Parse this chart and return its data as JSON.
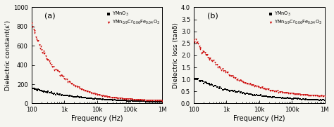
{
  "panel_a": {
    "label": "(a)",
    "xlabel": "Frequency (Hz)",
    "ylabel": "Dielectric constant(ε')",
    "ylim": [
      0,
      1000
    ],
    "yticks": [
      0,
      200,
      400,
      600,
      800,
      1000
    ],
    "xlim": [
      100,
      1000000
    ],
    "color1": "#000000",
    "color2": "#cc0000",
    "marker1": "s",
    "marker2": "v",
    "eps_black_start": 155,
    "eps_black_end": 5,
    "eps_black_exp": 0.28,
    "eps_red_start": 800,
    "eps_red_end": 22,
    "eps_red_exp": 0.52
  },
  "panel_b": {
    "label": "(b)",
    "xlabel": "Frequency (Hz)",
    "ylabel": "Dielectric loss (tanδ)",
    "ylim": [
      0,
      4.0
    ],
    "yticks": [
      0.0,
      0.5,
      1.0,
      1.5,
      2.0,
      2.5,
      3.0,
      3.5,
      4.0
    ],
    "xlim": [
      100,
      1000000
    ],
    "color1": "#000000",
    "color2": "#cc0000",
    "marker1": "s",
    "marker2": "v",
    "loss_black_start": 1.0,
    "loss_black_end": 0.08,
    "loss_black_exp": 0.3,
    "loss_red_start": 2.5,
    "loss_red_end": 0.22,
    "loss_red_exp": 0.37
  },
  "legend1": "YMnO$_3$",
  "legend2": "YMn$_{0.9}$Cr$_{0.06}$Fe$_{0.04}$O$_3$",
  "background": "#f5f5f0",
  "xtick_vals": [
    100,
    1000,
    10000,
    100000,
    1000000
  ],
  "xtick_labels": [
    "100",
    "1k",
    "10k",
    "100k",
    "1M"
  ]
}
